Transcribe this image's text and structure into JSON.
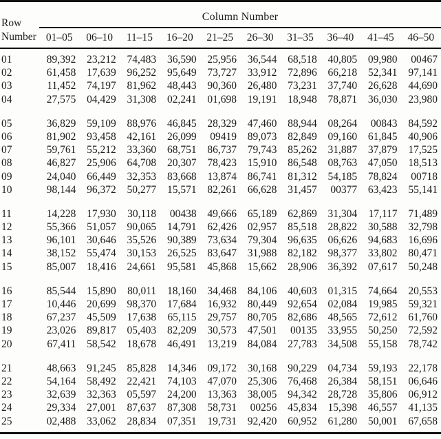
{
  "page": {
    "background_color": "#fdfdfc",
    "text_color": "#1b1b1b",
    "rule_color": "#111111"
  },
  "table": {
    "title": "Column Number",
    "row_header_line1": "Row",
    "row_header_line2": "Number",
    "column_headers": [
      "01–05",
      "06–10",
      "11–15",
      "16–20",
      "21–25",
      "26–30",
      "31–35",
      "36–40",
      "41–45",
      "46–50"
    ],
    "gap_after": [
      "04",
      "10",
      "15",
      "20"
    ],
    "rows": [
      {
        "row": "01",
        "values": [
          "89,392",
          "23,212",
          "74,483",
          "36,590",
          "25,956",
          "36,544",
          "68,518",
          "40,805",
          "09,980",
          "00467"
        ]
      },
      {
        "row": "02",
        "values": [
          "61,458",
          "17,639",
          "96,252",
          "95,649",
          "73,727",
          "33,912",
          "72,896",
          "66,218",
          "52,341",
          "97,141"
        ]
      },
      {
        "row": "03",
        "values": [
          "11,452",
          "74,197",
          "81,962",
          "48,443",
          "90,360",
          "26,480",
          "73,231",
          "37,740",
          "26,628",
          "44,690"
        ]
      },
      {
        "row": "04",
        "values": [
          "27,575",
          "04,429",
          "31,308",
          "02,241",
          "01,698",
          "19,191",
          "18,948",
          "78,871",
          "36,030",
          "23,980"
        ]
      },
      {
        "row": "05",
        "values": [
          "36,829",
          "59,109",
          "88,976",
          "46,845",
          "28,329",
          "47,460",
          "88,944",
          "08,264",
          "00843",
          "84,592"
        ]
      },
      {
        "row": "06",
        "values": [
          "81,902",
          "93,458",
          "42,161",
          "26,099",
          "09419",
          "89,073",
          "82,849",
          "09,160",
          "61,845",
          "40,906"
        ]
      },
      {
        "row": "07",
        "values": [
          "59,761",
          "55,212",
          "33,360",
          "68,751",
          "86,737",
          "79,743",
          "85,262",
          "31,887",
          "37,879",
          "17,525"
        ]
      },
      {
        "row": "08",
        "values": [
          "46,827",
          "25,906",
          "64,708",
          "20,307",
          "78,423",
          "15,910",
          "86,548",
          "08,763",
          "47,050",
          "18,513"
        ]
      },
      {
        "row": "09",
        "values": [
          "24,040",
          "66,449",
          "32,353",
          "83,668",
          "13,874",
          "86,741",
          "81,312",
          "54,185",
          "78,824",
          "00718"
        ]
      },
      {
        "row": "10",
        "values": [
          "98,144",
          "96,372",
          "50,277",
          "15,571",
          "82,261",
          "66,628",
          "31,457",
          "00377",
          "63,423",
          "55,141"
        ]
      },
      {
        "row": "11",
        "values": [
          "14,228",
          "17,930",
          "30,118",
          "00438",
          "49,666",
          "65,189",
          "62,869",
          "31,304",
          "17,117",
          "71,489"
        ]
      },
      {
        "row": "12",
        "values": [
          "55,366",
          "51,057",
          "90,065",
          "14,791",
          "62,426",
          "02,957",
          "85,518",
          "28,822",
          "30,588",
          "32,798"
        ]
      },
      {
        "row": "13",
        "values": [
          "96,101",
          "30,646",
          "35,526",
          "90,389",
          "73,634",
          "79,304",
          "96,635",
          "06,626",
          "94,683",
          "16,696"
        ]
      },
      {
        "row": "14",
        "values": [
          "38,152",
          "55,474",
          "30,153",
          "26,525",
          "83,647",
          "31,988",
          "82,182",
          "98,377",
          "33,802",
          "80,471"
        ]
      },
      {
        "row": "15",
        "values": [
          "85,007",
          "18,416",
          "24,661",
          "95,581",
          "45,868",
          "15,662",
          "28,906",
          "36,392",
          "07,617",
          "50,248"
        ]
      },
      {
        "row": "16",
        "values": [
          "85,544",
          "15,890",
          "80,011",
          "18,160",
          "34,468",
          "84,106",
          "40,603",
          "01,315",
          "74,664",
          "20,553"
        ]
      },
      {
        "row": "17",
        "values": [
          "10,446",
          "20,699",
          "98,370",
          "17,684",
          "16,932",
          "80,449",
          "92,654",
          "02,084",
          "19,985",
          "59,321"
        ]
      },
      {
        "row": "18",
        "values": [
          "67,237",
          "45,509",
          "17,638",
          "65,115",
          "29,757",
          "80,705",
          "82,686",
          "48,565",
          "72,612",
          "61,760"
        ]
      },
      {
        "row": "19",
        "values": [
          "23,026",
          "89,817",
          "05,403",
          "82,209",
          "30,573",
          "47,501",
          "00135",
          "33,955",
          "50,250",
          "72,592"
        ]
      },
      {
        "row": "20",
        "values": [
          "67,411",
          "58,542",
          "18,678",
          "46,491",
          "13,219",
          "84,084",
          "27,783",
          "34,508",
          "55,158",
          "78,742"
        ]
      },
      {
        "row": "21",
        "values": [
          "48,663",
          "91,245",
          "85,828",
          "14,346",
          "09,172",
          "30,168",
          "90,229",
          "04,734",
          "59,193",
          "22,178"
        ]
      },
      {
        "row": "22",
        "values": [
          "54,164",
          "58,492",
          "22,421",
          "74,103",
          "47,070",
          "25,306",
          "76,468",
          "26,384",
          "58,151",
          "06,646"
        ]
      },
      {
        "row": "23",
        "values": [
          "32,639",
          "32,363",
          "05,597",
          "24,200",
          "13,363",
          "38,005",
          "94,342",
          "28,728",
          "35,806",
          "06,912"
        ]
      },
      {
        "row": "24",
        "values": [
          "29,334",
          "27,001",
          "87,637",
          "87,308",
          "58,731",
          "00256",
          "45,834",
          "15,398",
          "46,557",
          "41,135"
        ]
      },
      {
        "row": "25",
        "values": [
          "02,488",
          "33,062",
          "28,834",
          "07,351",
          "19,731",
          "92,420",
          "60,952",
          "61,280",
          "50,001",
          "67,658"
        ]
      }
    ]
  }
}
